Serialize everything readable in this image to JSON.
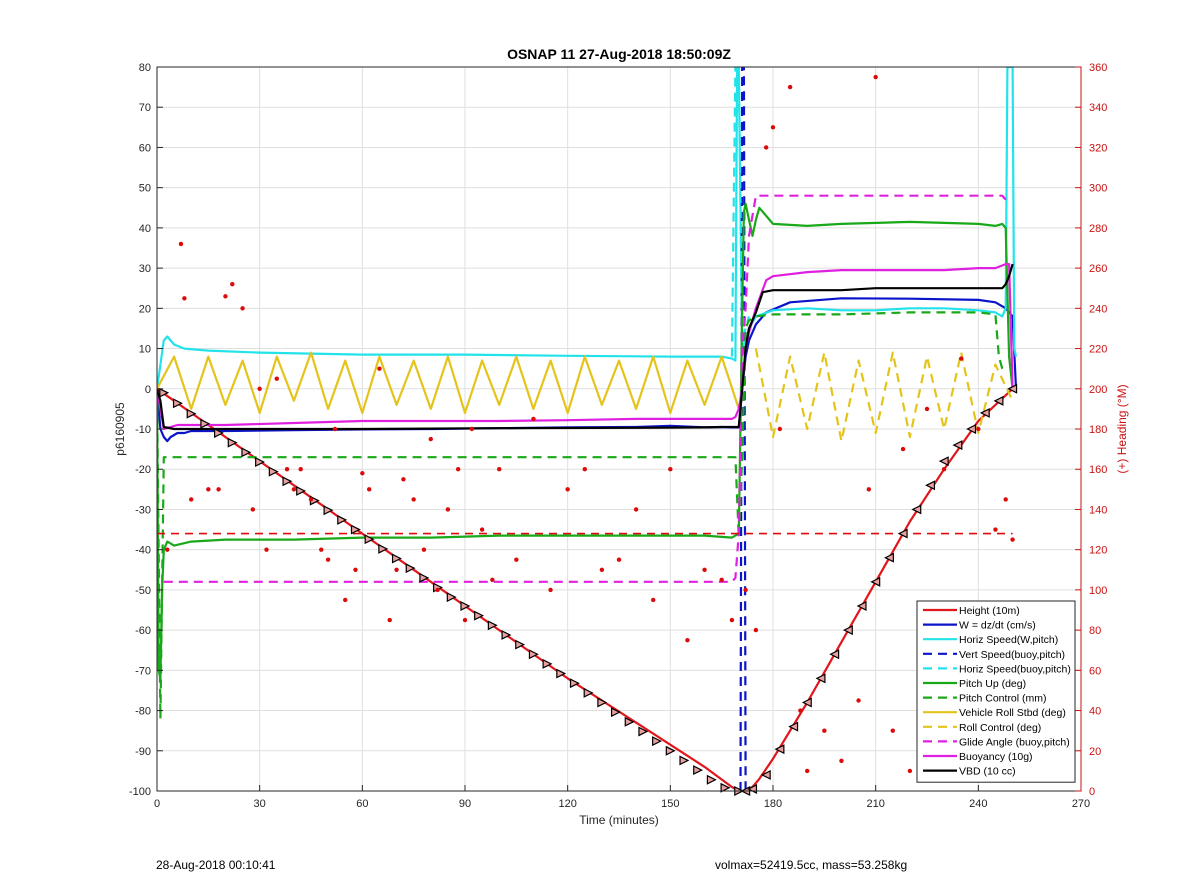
{
  "chart_data": {
    "type": "line",
    "title": "OSNAP 11 27-Aug-2018 18:50:09Z",
    "xlabel": "Time (minutes)",
    "ylabel": "p6160905",
    "y2label": "(+) Heading (°M)",
    "xlim": [
      0,
      270
    ],
    "ylim": [
      -100,
      80
    ],
    "y2lim": [
      0,
      360
    ],
    "xticks": [
      "0",
      "30",
      "60",
      "90",
      "120",
      "150",
      "180",
      "210",
      "240",
      "270"
    ],
    "yticks": [
      "80",
      "70",
      "60",
      "50",
      "40",
      "30",
      "20",
      "10",
      "0",
      "-10",
      "-20",
      "-30",
      "-40",
      "-50",
      "-60",
      "-70",
      "-80",
      "-90",
      "-100"
    ],
    "y2ticks": [
      "360",
      "340",
      "320",
      "300",
      "280",
      "260",
      "240",
      "220",
      "200",
      "180",
      "160",
      "140",
      "120",
      "100",
      "80",
      "60",
      "40",
      "20",
      "0"
    ],
    "grid": true,
    "legend_position": "lower-right",
    "colors": {
      "height": "#e0161b",
      "w": "#0b14c8",
      "horiz": "#22e3ea",
      "pitch": "#18a818",
      "roll": "#e4c41a",
      "glide": "#e020e0",
      "buoy": "#e020e0",
      "vbd": "#000000",
      "heading": "#dd0a0a",
      "axis2": "#cc1111"
    },
    "series": [
      {
        "name": "Height (10m)",
        "key": "height",
        "style": "solid",
        "x": [
          0,
          5,
          10,
          20,
          40,
          60,
          80,
          100,
          120,
          140,
          160,
          168,
          170,
          172,
          174,
          176,
          180,
          190,
          200,
          210,
          220,
          230,
          240,
          245,
          250
        ],
        "y": [
          0,
          -3,
          -6,
          -12,
          -24,
          -36,
          -48,
          -60,
          -72,
          -83,
          -94,
          -99,
          -100,
          -100,
          -99,
          -97,
          -92,
          -78,
          -63,
          -48,
          -33,
          -20,
          -8,
          -4,
          0
        ]
      },
      {
        "name": "W = dz/dt (cm/s)",
        "key": "w",
        "style": "solid",
        "x": [
          0,
          1,
          2,
          3,
          4,
          6,
          8,
          10,
          20,
          40,
          60,
          80,
          100,
          120,
          140,
          150,
          155,
          160,
          165,
          168,
          170,
          171,
          172,
          173,
          175,
          178,
          185,
          200,
          220,
          240,
          245,
          248,
          250,
          251
        ],
        "y": [
          0,
          -10,
          -12,
          -13,
          -12,
          -11,
          -11,
          -10.5,
          -10.5,
          -10.3,
          -10.1,
          -10,
          -9.8,
          -9.6,
          -9.5,
          -9.2,
          -9.4,
          -9.6,
          -9.5,
          -9.6,
          -9.6,
          0,
          8,
          12,
          16,
          19,
          21.5,
          22.5,
          22.4,
          22.1,
          21.5,
          20,
          18,
          0
        ]
      },
      {
        "name": "Horiz Speed(W,pitch)",
        "key": "horiz",
        "style": "solid",
        "x": [
          0,
          1,
          2,
          3,
          5,
          8,
          15,
          30,
          60,
          90,
          120,
          150,
          165,
          168,
          169,
          169.5,
          170,
          171,
          172,
          173,
          175,
          180,
          190,
          200,
          210,
          220,
          230,
          240,
          245,
          247,
          248,
          248.5,
          249,
          250,
          250.5,
          251
        ],
        "y": [
          0,
          6,
          12,
          13,
          11,
          10,
          9.5,
          9,
          8.5,
          8.5,
          8.2,
          8,
          8,
          7.5,
          7,
          80,
          80,
          10,
          12,
          15,
          18,
          19.5,
          20,
          19.5,
          19.5,
          20,
          20,
          19.5,
          19,
          18,
          20,
          80,
          80,
          80,
          10,
          8
        ]
      },
      {
        "name": "Vert Speed(buoy,pitch)",
        "key": "w",
        "style": "dashed",
        "x": [
          170.5,
          171,
          171.5,
          172,
          172.5,
          173
        ],
        "y": [
          -100,
          80,
          80,
          -100,
          -100,
          -100
        ]
      },
      {
        "name": "Horiz Speed(buoy,pitch)",
        "key": "horiz",
        "style": "dashed",
        "x": [
          168,
          169,
          170,
          171,
          172,
          173
        ],
        "y": [
          8,
          80,
          80,
          12,
          15,
          18
        ]
      },
      {
        "name": "Pitch Up (deg)",
        "key": "pitch",
        "style": "solid",
        "x": [
          0,
          0.5,
          1,
          1.5,
          2,
          3,
          5,
          10,
          20,
          40,
          60,
          80,
          100,
          120,
          140,
          160,
          168,
          169,
          170,
          171,
          171.5,
          172,
          173,
          174,
          175,
          176,
          180,
          190,
          200,
          220,
          240,
          245,
          247,
          248,
          249,
          250
        ],
        "y": [
          0,
          -70,
          -72,
          -50,
          -40,
          -38,
          -39,
          -38,
          -37.5,
          -37.5,
          -37,
          -37,
          -36.5,
          -36.5,
          -36.5,
          -36.5,
          -37,
          -36.5,
          -36,
          20,
          44,
          46,
          42,
          38,
          42,
          45,
          41,
          40.5,
          41,
          41.5,
          41,
          40.5,
          41,
          40,
          8,
          0
        ]
      },
      {
        "name": "Pitch Control (mm)",
        "key": "pitch",
        "style": "dashed",
        "x": [
          0,
          1,
          2,
          3,
          20,
          60,
          100,
          140,
          168,
          169,
          170,
          171,
          172,
          173,
          175,
          180,
          200,
          220,
          240,
          245,
          246,
          247,
          248
        ],
        "y": [
          0,
          -82,
          -17,
          -17,
          -17,
          -17,
          -17,
          -17,
          -17,
          -17,
          -37,
          -17,
          15,
          17,
          18,
          18.5,
          18.5,
          19,
          19,
          18.5,
          8,
          5,
          4
        ]
      },
      {
        "name": "Vehicle Roll Stbd (deg)",
        "key": "roll",
        "style": "solid",
        "x": [
          0,
          5,
          10,
          15,
          20,
          25,
          30,
          35,
          40,
          45,
          50,
          55,
          60,
          65,
          70,
          75,
          80,
          85,
          90,
          95,
          100,
          105,
          110,
          115,
          120,
          125,
          130,
          135,
          140,
          145,
          150,
          155,
          160,
          165,
          170
        ],
        "y": [
          0,
          8,
          -5,
          8,
          -4,
          7,
          -6,
          8,
          -3,
          9,
          -5,
          7,
          -6,
          8,
          -4,
          7,
          -5,
          8,
          -6,
          7,
          -4,
          8,
          -5,
          7,
          -6,
          8,
          -4,
          7,
          -5,
          8,
          -6,
          7,
          -4,
          8,
          -5
        ]
      },
      {
        "name": "Roll Control (deg)",
        "key": "roll",
        "style": "dashed",
        "x": [
          175,
          180,
          185,
          190,
          195,
          200,
          205,
          210,
          215,
          220,
          225,
          230,
          235,
          240,
          245,
          250
        ],
        "y": [
          10,
          -12,
          8,
          -10,
          9,
          -13,
          7,
          -11,
          9,
          -12,
          8,
          -10,
          9,
          -11,
          6,
          -3
        ]
      },
      {
        "name": "Glide Angle (buoy,pitch)",
        "key": "glide",
        "style": "dashed",
        "x": [
          2,
          20,
          40,
          60,
          80,
          100,
          120,
          140,
          160,
          168,
          169,
          170,
          171,
          172,
          173,
          175,
          180,
          200,
          220,
          240,
          247,
          248
        ],
        "y": [
          -48,
          -48,
          -48,
          -48,
          -48,
          -48,
          -48,
          -48,
          -48,
          -48,
          -47,
          -36,
          10,
          20,
          38,
          48,
          48,
          48,
          48,
          48,
          48,
          47
        ]
      },
      {
        "name": "Buoyancy (10g)",
        "key": "buoy",
        "style": "solid",
        "x": [
          0,
          2,
          4,
          6,
          10,
          20,
          40,
          60,
          80,
          100,
          120,
          140,
          160,
          168,
          169,
          170,
          171,
          172,
          173,
          175,
          178,
          180,
          190,
          200,
          210,
          220,
          230,
          240,
          245,
          248,
          249,
          250
        ],
        "y": [
          0,
          -10,
          -9.5,
          -9,
          -9,
          -9,
          -8.5,
          -8,
          -8,
          -8,
          -7.8,
          -7.5,
          -7.5,
          -7.5,
          -7,
          -5,
          0,
          10,
          14,
          20,
          27,
          28,
          29,
          29.5,
          29.5,
          29.5,
          29.5,
          30,
          30,
          31,
          31,
          0
        ]
      },
      {
        "name": "VBD (10 cc)",
        "key": "vbd",
        "style": "solid",
        "x": [
          0,
          1,
          2,
          5,
          20,
          60,
          100,
          140,
          160,
          165,
          168,
          170,
          171,
          172,
          173,
          175,
          177,
          180,
          185,
          190,
          200,
          210,
          220,
          230,
          240,
          245,
          247,
          248,
          249,
          250
        ],
        "y": [
          0,
          -3,
          -9.5,
          -10,
          -10,
          -10,
          -9.8,
          -9.7,
          -9.6,
          -9.5,
          -9.5,
          -9.5,
          0,
          10,
          15,
          19,
          24,
          24.5,
          24.5,
          24.5,
          24.5,
          25,
          25,
          25,
          25,
          25,
          25,
          26,
          28,
          31
        ]
      },
      {
        "name": "",
        "key": "heading",
        "style": "dashed-ref",
        "x": [
          0,
          170,
          250
        ],
        "y": [
          -36,
          -36,
          -36
        ]
      }
    ],
    "legend": [
      {
        "label": "Height (10m)",
        "key": "height",
        "style": "solid"
      },
      {
        "label": "W = dz/dt (cm/s)",
        "key": "w",
        "style": "solid"
      },
      {
        "label": "Horiz Speed(W,pitch)",
        "key": "horiz",
        "style": "solid"
      },
      {
        "label": "Vert Speed(buoy,pitch)",
        "key": "w",
        "style": "dashed"
      },
      {
        "label": "Horiz Speed(buoy,pitch)",
        "key": "horiz",
        "style": "dashed"
      },
      {
        "label": "Pitch Up (deg)",
        "key": "pitch",
        "style": "solid"
      },
      {
        "label": "Pitch Control (mm)",
        "key": "pitch",
        "style": "dashed"
      },
      {
        "label": "Vehicle Roll Stbd (deg)",
        "key": "roll",
        "style": "solid"
      },
      {
        "label": "Roll Control (deg)",
        "key": "roll",
        "style": "dashed"
      },
      {
        "label": "Glide Angle (buoy,pitch)",
        "key": "glide",
        "style": "dashed"
      },
      {
        "label": "Buoyancy (10g)",
        "key": "buoy",
        "style": "solid"
      },
      {
        "label": "VBD (10 cc)",
        "key": "vbd",
        "style": "solid"
      }
    ],
    "heading_points": {
      "x": [
        3,
        7,
        8,
        10,
        15,
        18,
        20,
        22,
        25,
        28,
        30,
        32,
        35,
        38,
        40,
        42,
        45,
        48,
        50,
        52,
        55,
        58,
        60,
        62,
        65,
        68,
        70,
        72,
        75,
        78,
        80,
        82,
        85,
        88,
        90,
        92,
        95,
        98,
        100,
        105,
        110,
        115,
        120,
        125,
        130,
        135,
        140,
        145,
        150,
        155,
        160,
        165,
        168,
        172,
        175,
        178,
        180,
        182,
        185,
        188,
        190,
        195,
        200,
        205,
        208,
        210,
        215,
        218,
        220,
        225,
        230,
        235,
        240,
        245,
        248,
        250
      ],
      "y": [
        120,
        272,
        245,
        145,
        150,
        150,
        246,
        252,
        240,
        140,
        200,
        120,
        205,
        160,
        150,
        160,
        145,
        120,
        115,
        180,
        95,
        110,
        158,
        150,
        210,
        85,
        110,
        155,
        145,
        120,
        175,
        100,
        140,
        160,
        85,
        180,
        130,
        105,
        160,
        115,
        185,
        100,
        150,
        160,
        110,
        115,
        140,
        95,
        160,
        75,
        110,
        105,
        85,
        100,
        80,
        320,
        330,
        180,
        350,
        40,
        10,
        30,
        15,
        45,
        150,
        355,
        30,
        170,
        10,
        190,
        160,
        215,
        180,
        130,
        145,
        125
      ]
    },
    "markers": {
      "x": [
        2,
        6,
        10,
        14,
        18,
        22,
        26,
        30,
        34,
        38,
        42,
        46,
        50,
        54,
        58,
        62,
        66,
        70,
        74,
        78,
        82,
        86,
        90,
        94,
        98,
        102,
        106,
        110,
        114,
        118,
        122,
        126,
        130,
        134,
        138,
        142,
        146,
        150,
        154,
        158,
        162,
        166,
        170,
        172,
        174,
        178,
        182,
        186,
        190,
        194,
        198,
        202,
        206,
        210,
        214,
        218,
        222,
        226,
        230,
        234,
        238,
        242,
        246,
        250
      ],
      "y": [
        -1,
        -3.6,
        -6.2,
        -8.7,
        -11,
        -13.4,
        -15.8,
        -18.2,
        -20.6,
        -23,
        -25.4,
        -27.8,
        -30.2,
        -32.6,
        -35,
        -37.4,
        -39.8,
        -42.2,
        -44.6,
        -47,
        -49.4,
        -51.8,
        -54,
        -56.4,
        -58.8,
        -61.2,
        -63.6,
        -66,
        -68.4,
        -70.8,
        -73.2,
        -75.6,
        -78,
        -80.4,
        -82.8,
        -85.2,
        -87.6,
        -90,
        -92.4,
        -94.8,
        -97.2,
        -99.2,
        -100,
        -100,
        -99.5,
        -96,
        -89.6,
        -84,
        -78,
        -72,
        -66,
        -60,
        -54,
        -48,
        -42,
        -36,
        -30,
        -24,
        -18,
        -14,
        -10,
        -6,
        -3,
        0
      ]
    }
  },
  "footer": {
    "date": "28-Aug-2018 00:10:41",
    "info": "volmax=52419.5cc, mass=53.258kg"
  }
}
